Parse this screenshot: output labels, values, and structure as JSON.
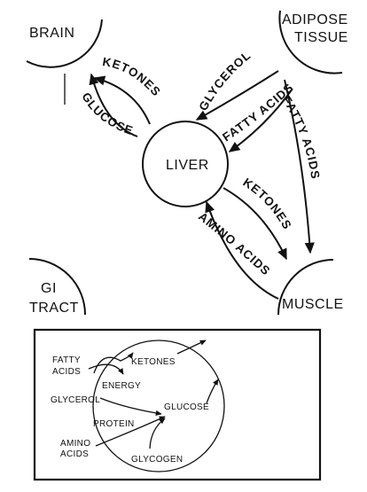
{
  "organs": {
    "brain": "BRAIN",
    "adipose_line1": "ADIPOSE",
    "adipose_line2": "TISSUE",
    "liver": "LIVER",
    "gi_line1": "GI",
    "gi_line2": "TRACT",
    "muscle": "MUSCLE"
  },
  "flows": {
    "ketones_to_brain": "KETONES",
    "glucose_to_brain": "GLUCOSE",
    "glycerol_to_liver": "GLYCEROL",
    "fatty_acids_to_liver": "FATTY ACIDS",
    "fatty_acids_to_muscle": "FATTY ACIDS",
    "ketones_to_muscle": "KETONES",
    "amino_acids_to_liver": "AMINO ACIDS"
  },
  "inset": {
    "fatty_line1": "FATTY",
    "fatty_line2": "ACIDS",
    "ketones": "KETONES",
    "energy": "ENERGY",
    "glycerol": "GLYCEROL",
    "glucose": "GLUCOSE",
    "protein": "PROTEIN",
    "amino_line1": "AMINO",
    "amino_line2": "ACIDS",
    "glycogen": "GLYCOGEN"
  }
}
